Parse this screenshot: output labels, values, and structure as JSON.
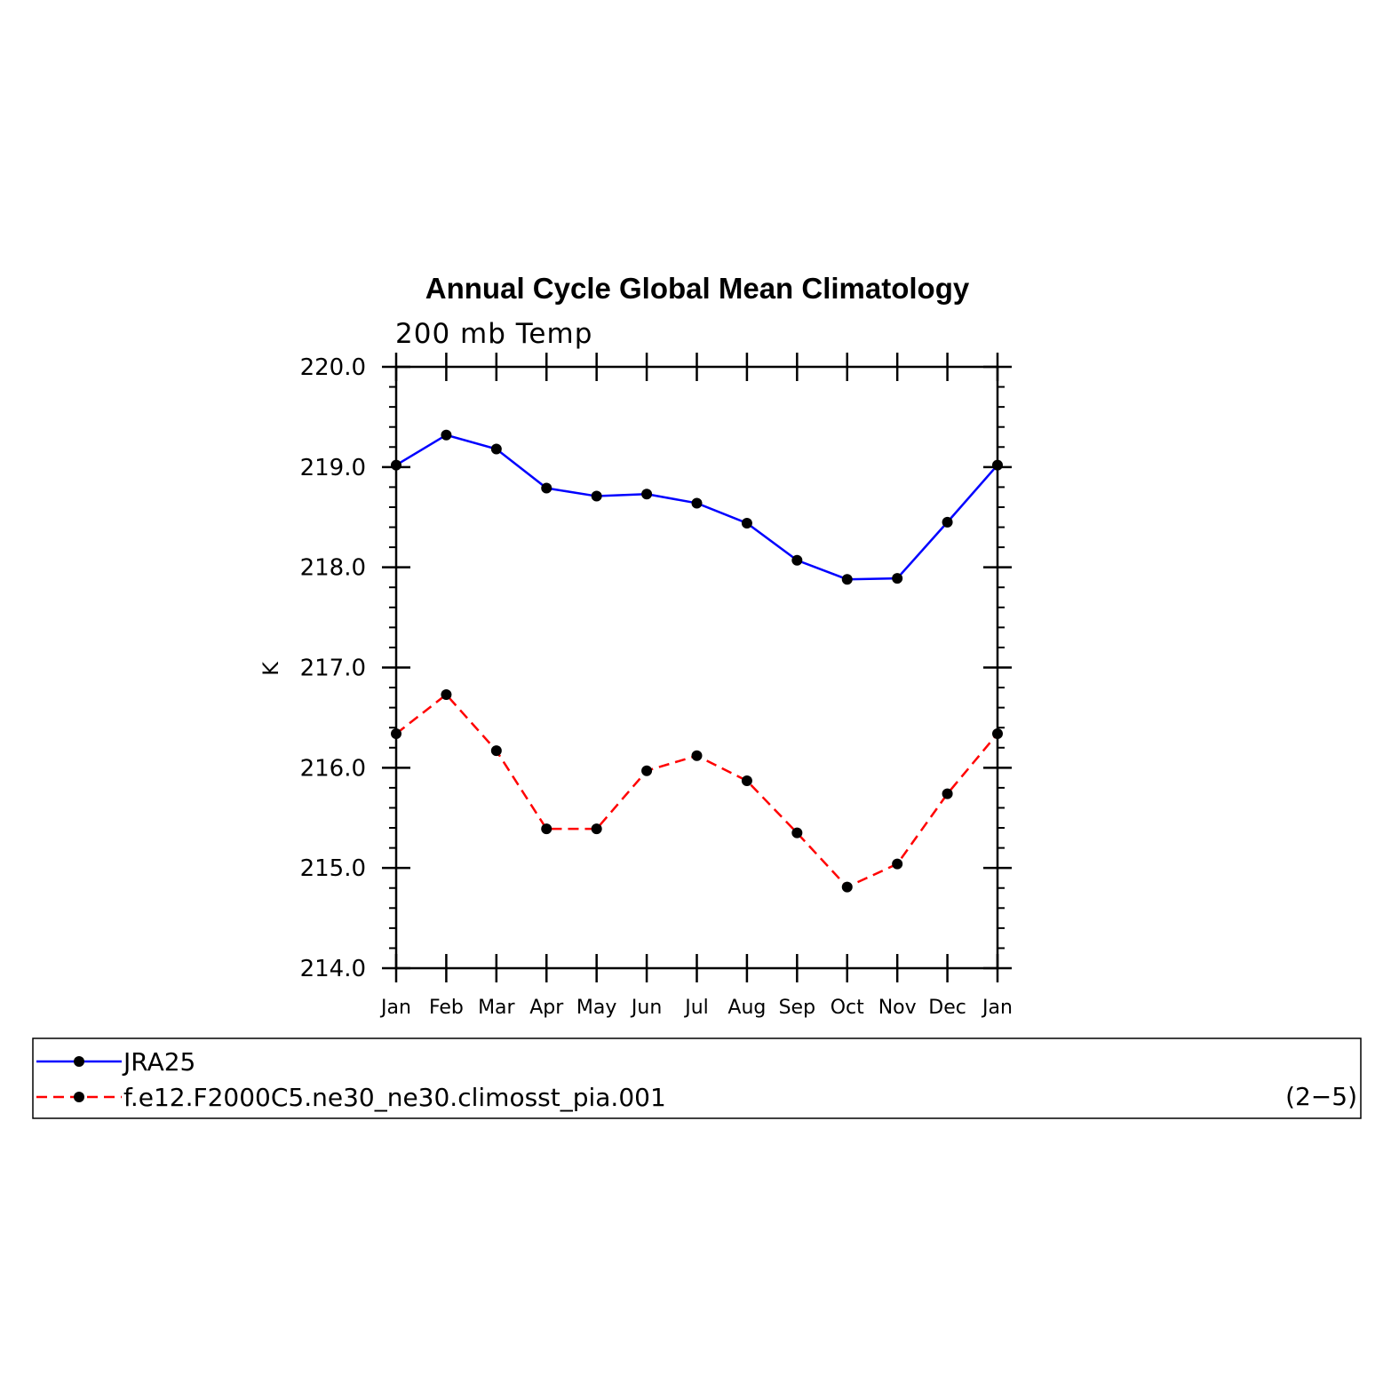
{
  "chart_data": {
    "type": "line",
    "title": "Annual Cycle Global Mean Climatology",
    "subtitle": "200 mb Temp",
    "ylabel": "K",
    "xlabel": "",
    "categories": [
      "Jan",
      "Feb",
      "Mar",
      "Apr",
      "May",
      "Jun",
      "Jul",
      "Aug",
      "Sep",
      "Oct",
      "Nov",
      "Dec",
      "Jan"
    ],
    "ylim": [
      214.0,
      220.0
    ],
    "yticks": [
      "214.0",
      "215.0",
      "216.0",
      "217.0",
      "218.0",
      "219.0",
      "220.0"
    ],
    "yminor_step": 0.2,
    "grid": false,
    "legend_position": "bottom",
    "series": [
      {
        "name": "JRA25",
        "color": "#0000ff",
        "dash": "solid",
        "marker": "dot",
        "values": [
          219.02,
          219.32,
          219.18,
          218.79,
          218.71,
          218.73,
          218.64,
          218.44,
          218.07,
          217.88,
          217.89,
          218.45,
          219.02
        ]
      },
      {
        "name": "f.e12.F2000C5.ne30_ne30.climosst_pia.001",
        "color": "#ff0000",
        "dash": "dashed",
        "marker": "dot",
        "values": [
          216.34,
          216.73,
          216.17,
          215.39,
          215.39,
          215.97,
          216.12,
          215.87,
          215.35,
          214.81,
          215.04,
          215.74,
          216.34
        ]
      }
    ],
    "panel_label": "(2−5)"
  }
}
